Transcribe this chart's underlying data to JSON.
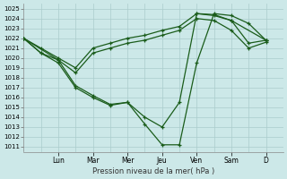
{
  "bg_color": "#cce8e8",
  "grid_color": "#aacccc",
  "line_color": "#1a5c1a",
  "xlabel": "Pression niveau de la mer( hPa )",
  "ylim": [
    1010.5,
    1025.5
  ],
  "yticks": [
    1011,
    1012,
    1013,
    1014,
    1015,
    1016,
    1017,
    1018,
    1019,
    1020,
    1021,
    1022,
    1023,
    1024,
    1025
  ],
  "day_labels": [
    "Lun",
    "Mar",
    "Mer",
    "Jeu",
    "Ven",
    "Sam",
    "D"
  ],
  "day_tick_x": [
    1,
    2,
    3,
    4,
    5,
    6,
    7
  ],
  "xlim": [
    0,
    7.5
  ],
  "s1_x": [
    0.0,
    0.5,
    1.0,
    1.5,
    2.0,
    2.5,
    3.0,
    3.5,
    4.0,
    4.5,
    5.0,
    5.5,
    6.0,
    6.5,
    7.0
  ],
  "s1_y": [
    1022.0,
    1021.0,
    1020.0,
    1019.0,
    1021.0,
    1021.5,
    1022.0,
    1022.3,
    1022.8,
    1023.2,
    1024.5,
    1024.4,
    1023.8,
    1021.5,
    1021.8
  ],
  "s2_x": [
    0.0,
    0.5,
    1.0,
    1.5,
    2.0,
    2.5,
    3.0,
    3.5,
    4.0,
    4.5,
    5.0,
    5.5,
    6.0,
    6.5,
    7.0
  ],
  "s2_y": [
    1022.0,
    1020.5,
    1019.8,
    1018.5,
    1020.5,
    1021.0,
    1021.5,
    1021.8,
    1022.3,
    1022.8,
    1024.0,
    1023.8,
    1022.8,
    1021.0,
    1021.6
  ],
  "s3_x": [
    0.0,
    0.5,
    1.0,
    1.5,
    2.0,
    2.5,
    3.0,
    3.5,
    4.0,
    4.5,
    5.0,
    5.5,
    6.0,
    7.0
  ],
  "s3_y": [
    1022.0,
    1020.5,
    1019.5,
    1017.0,
    1016.0,
    1015.2,
    1015.5,
    1014.0,
    1013.0,
    1015.5,
    1024.5,
    1024.3,
    1023.8,
    1021.8
  ],
  "s4_x": [
    0.0,
    1.0,
    1.5,
    2.0,
    2.5,
    3.0,
    3.5,
    4.0,
    4.5,
    5.0,
    5.5,
    6.0,
    6.5,
    7.0
  ],
  "s4_y": [
    1022.0,
    1019.8,
    1017.2,
    1016.2,
    1015.3,
    1015.5,
    1013.3,
    1011.2,
    1011.2,
    1019.5,
    1024.5,
    1024.3,
    1023.5,
    1021.8
  ]
}
